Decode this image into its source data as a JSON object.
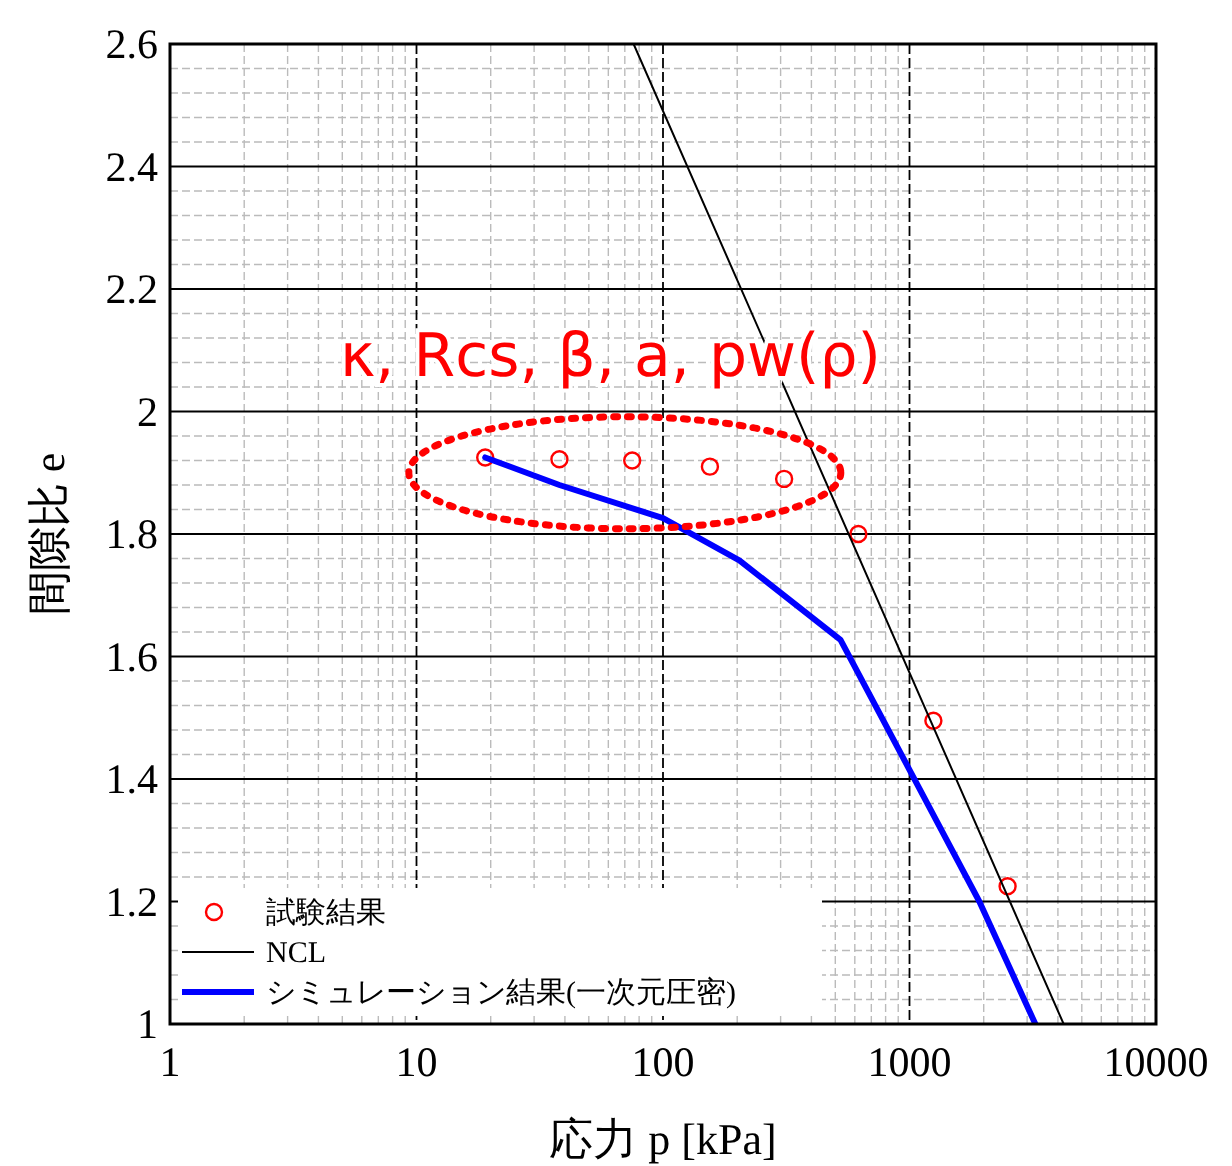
{
  "chart_data": {
    "type": "line",
    "xlabel": "応力 p [kPa]",
    "ylabel": "間隙比 e",
    "log": "x",
    "xlim": [
      1,
      10000
    ],
    "xticks": [
      1,
      10,
      100,
      1000,
      10000
    ],
    "ylim": [
      1,
      2.6
    ],
    "yticks": [
      1,
      1.2,
      1.4,
      1.6,
      1.8,
      2,
      2.2,
      2.4,
      2.6
    ],
    "grid": true,
    "legend": "bottom left",
    "annotations": [
      "κ, Rcs, β, a, pw(ρ)"
    ],
    "series": [
      {
        "name": "試験結果",
        "type": "scatter",
        "marker": "circle",
        "color": "#ff0000",
        "x": [
          19,
          38,
          75,
          155,
          310,
          620,
          1250,
          2500
        ],
        "values": [
          1.925,
          1.922,
          1.92,
          1.91,
          1.89,
          1.8,
          1.495,
          1.225
        ]
      },
      {
        "name": "NCL",
        "color": "#000000",
        "x": [
          76,
          4220
        ],
        "values": [
          2.6,
          1.0
        ]
      },
      {
        "name": "シミュレーション結果(一次元圧密)",
        "color": "#0000ff",
        "x": [
          19,
          38,
          100,
          204,
          525,
          1000,
          1920,
          3240
        ],
        "values": [
          1.925,
          1.88,
          1.826,
          1.757,
          1.627,
          1.415,
          1.2,
          1.0
        ]
      }
    ]
  }
}
